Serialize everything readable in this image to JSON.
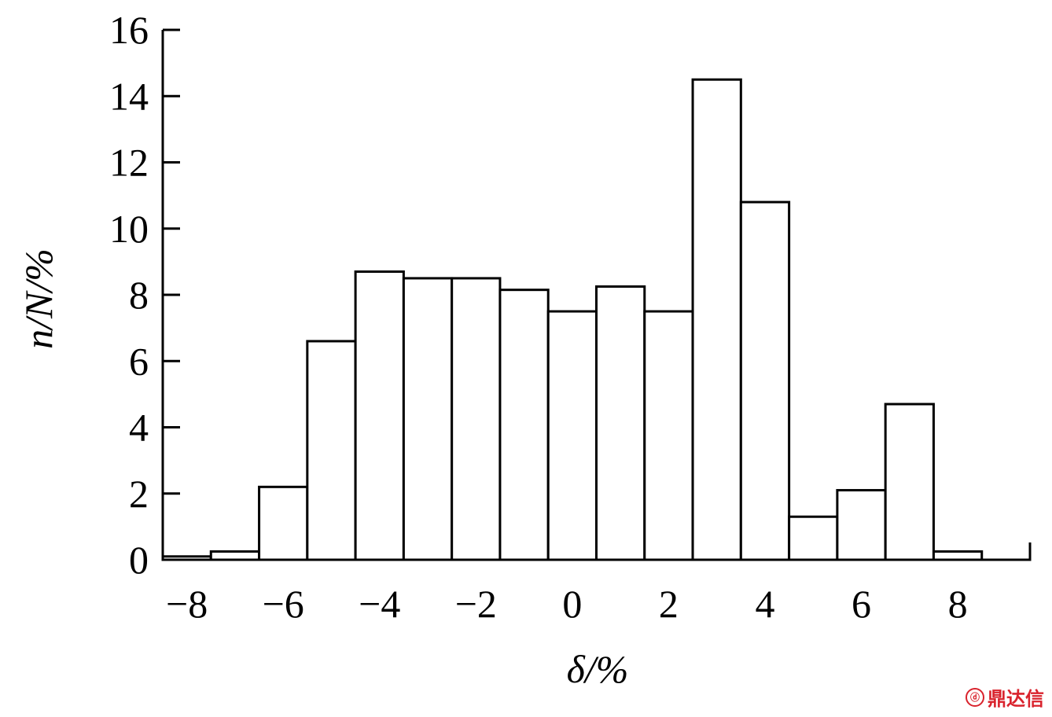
{
  "chart_data": {
    "type": "bar",
    "title": "",
    "xlabel": "δ/%",
    "ylabel": "n/N/%",
    "bin_width": 1,
    "bin_centers": [
      -8,
      -7,
      -6,
      -5,
      -4,
      -3,
      -2,
      -1,
      0,
      1,
      2,
      3,
      4,
      5,
      6,
      7,
      8
    ],
    "values": [
      0.1,
      0.25,
      2.2,
      6.6,
      8.7,
      8.5,
      8.5,
      8.15,
      7.5,
      8.25,
      7.5,
      14.5,
      10.8,
      1.3,
      2.1,
      4.7,
      0.25
    ],
    "xlim": [
      -8.5,
      9.5
    ],
    "ylim": [
      0,
      16
    ],
    "xticks": [
      -8,
      -6,
      -4,
      -2,
      0,
      2,
      4,
      6,
      8
    ],
    "xtick_labels": [
      "−8",
      "−6",
      "−4",
      "−2",
      "0",
      "2",
      "4",
      "6",
      "8"
    ],
    "yticks": [
      0,
      2,
      4,
      6,
      8,
      10,
      12,
      14,
      16
    ],
    "ytick_labels": [
      "0",
      "2",
      "4",
      "6",
      "8",
      "10",
      "12",
      "14",
      "16"
    ],
    "grid": false,
    "legend": "none"
  },
  "watermark": {
    "text": "鼎达信",
    "logo_text": "ⓓ"
  }
}
